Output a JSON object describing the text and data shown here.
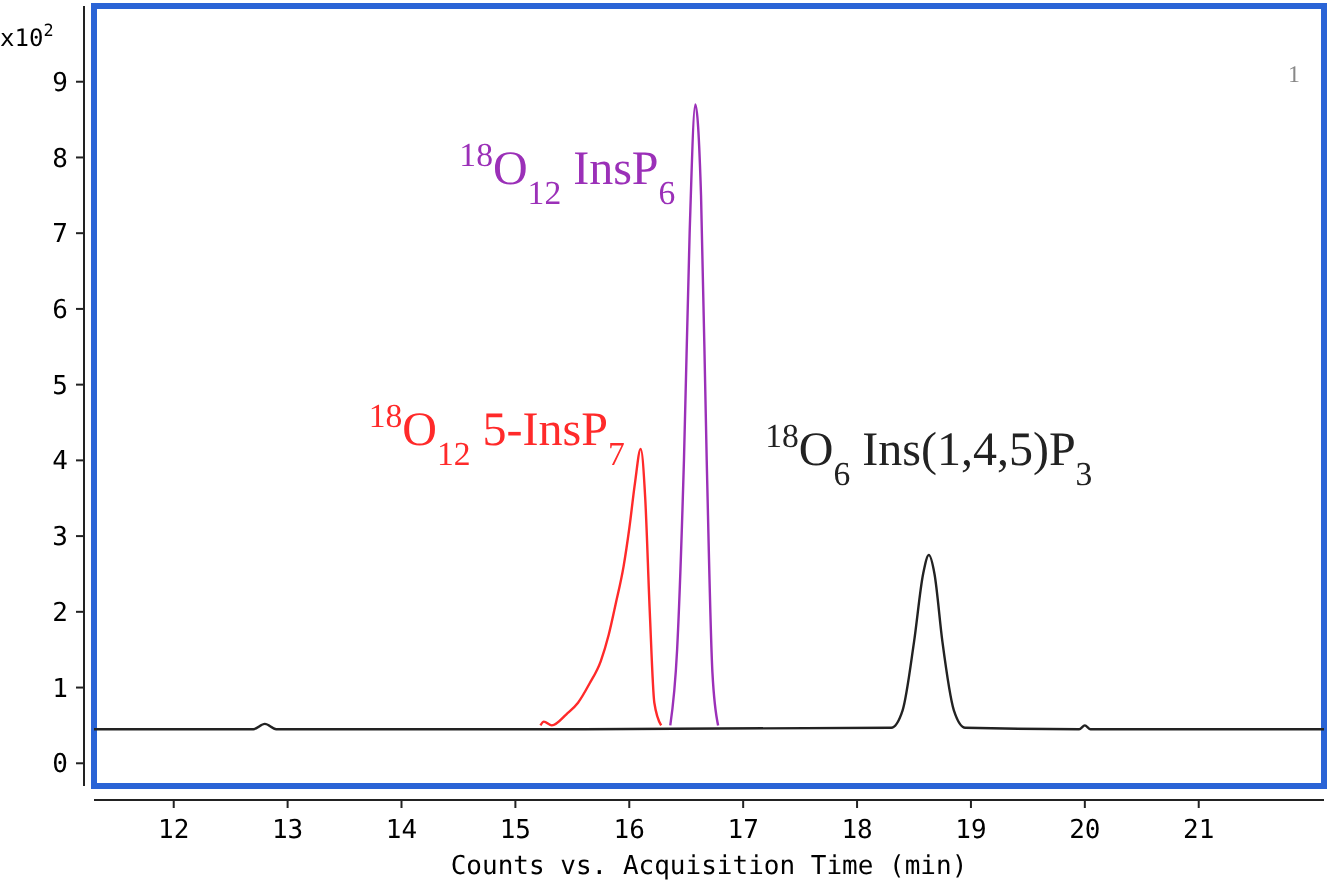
{
  "chart_data": {
    "type": "line",
    "xlabel": "Counts vs. Acquisition Time (min)",
    "ylabel": "x10$^{2}$",
    "xlim": [
      11.3,
      22.1
    ],
    "ylim": [
      -0.3,
      10
    ],
    "xticks": [
      12,
      13,
      14,
      15,
      16,
      17,
      18,
      19,
      20,
      21
    ],
    "yticks": [
      0,
      1,
      2,
      3,
      4,
      5,
      6,
      7,
      8,
      9
    ],
    "grid": false,
    "line_style": "solid",
    "series": [
      {
        "color": "#ff2a2a",
        "x": [
          15.22,
          15.25,
          15.32,
          15.45,
          15.55,
          15.65,
          15.75,
          15.82,
          15.88,
          15.95,
          16.0,
          16.05,
          16.1,
          16.14,
          16.18,
          16.22,
          16.28
        ],
        "values": [
          0.5,
          0.55,
          0.5,
          0.65,
          0.8,
          1.05,
          1.35,
          1.7,
          2.1,
          2.6,
          3.1,
          3.7,
          4.15,
          3.5,
          2.0,
          0.8,
          0.5
        ]
      },
      {
        "color": "#9b30b8",
        "x": [
          16.36,
          16.42,
          16.48,
          16.53,
          16.58,
          16.63,
          16.68,
          16.73,
          16.78
        ],
        "values": [
          0.5,
          1.5,
          4.0,
          7.0,
          8.7,
          7.5,
          4.0,
          1.2,
          0.5
        ]
      },
      {
        "color": "#222222",
        "x": [
          11.3,
          12.7,
          12.8,
          12.9,
          15.6,
          18.3,
          18.4,
          18.5,
          18.58,
          18.63,
          18.68,
          18.75,
          18.85,
          18.95,
          19.95,
          20.0,
          20.05,
          22.1
        ],
        "values": [
          0.45,
          0.45,
          0.52,
          0.45,
          0.45,
          0.47,
          0.7,
          1.6,
          2.5,
          2.75,
          2.5,
          1.6,
          0.7,
          0.47,
          0.45,
          0.5,
          0.45,
          0.45
        ]
      }
    ],
    "annotations": [
      {
        "text": "$^{18}$O$_{12}$ 5-InsP$_{7}$",
        "x": 16.1,
        "y": 4.15
      },
      {
        "text": "$^{18}$O$_{12}$ InsP$_{6}$",
        "x": 16.58,
        "y": 8.7
      },
      {
        "text": "$^{18}$O$_{6}$ Ins(1,4,5)P$_{3}$",
        "x": 18.63,
        "y": 2.75
      },
      "1"
    ]
  }
}
